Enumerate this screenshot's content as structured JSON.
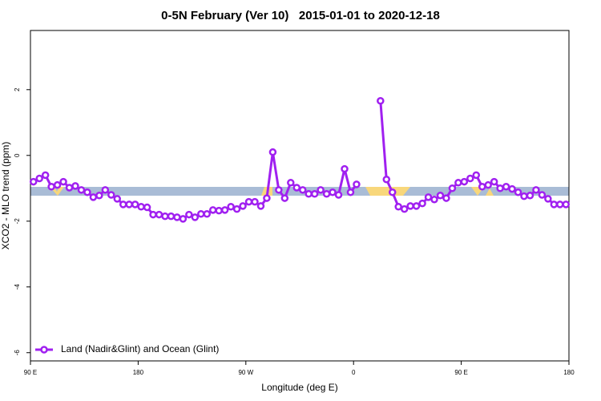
{
  "chart_data": {
    "type": "line",
    "title": "0-5N February (Ver 10)   2015-01-01 to 2020-12-18",
    "x_label": "Longitude (deg E)",
    "y_label": "XCO2 - MLO trend (ppm)",
    "x": [
      92.5,
      97.5,
      102.5,
      107.5,
      112.5,
      117.5,
      122.5,
      127.5,
      132.5,
      137.5,
      142.5,
      147.5,
      152.5,
      157.5,
      162.5,
      167.5,
      172.5,
      177.5,
      182.5,
      187.5,
      192.5,
      197.5,
      202.5,
      207.5,
      212.5,
      217.5,
      222.5,
      227.5,
      232.5,
      237.5,
      242.5,
      247.5,
      252.5,
      257.5,
      262.5,
      267.5,
      272.5,
      277.5,
      282.5,
      287.5,
      292.5,
      297.5,
      302.5,
      307.5,
      312.5,
      317.5,
      322.5,
      327.5,
      332.5,
      337.5,
      342.5,
      347.5,
      352.5,
      357.5,
      362.5,
      367.5,
      372.5,
      377.5,
      382.5,
      387.5,
      392.5,
      397.5,
      402.5,
      407.5,
      412.5,
      417.5,
      422.5,
      427.5,
      432.5,
      437.5,
      442.5,
      447.5,
      452.5,
      457.5,
      462.5,
      467.5,
      472.5,
      477.5,
      482.5,
      487.5,
      492.5,
      497.5,
      502.5,
      507.5,
      512.5,
      517.5,
      522.5,
      527.5,
      532.5,
      537.5
    ],
    "series": [
      {
        "name": "Land (Nadir&Glint) and Ocean (Glint)",
        "color": "#a020f0",
        "values": [
          -0.8,
          -0.7,
          -0.6,
          -0.95,
          -0.9,
          -0.8,
          -0.98,
          -0.93,
          -1.05,
          -1.12,
          -1.27,
          -1.22,
          -1.05,
          -1.2,
          -1.32,
          -1.49,
          -1.49,
          -1.49,
          -1.56,
          -1.58,
          -1.8,
          -1.8,
          -1.85,
          -1.85,
          -1.88,
          -1.93,
          -1.8,
          -1.88,
          -1.78,
          -1.78,
          -1.66,
          -1.68,
          -1.66,
          -1.56,
          -1.63,
          -1.54,
          -1.41,
          -1.41,
          -1.54,
          -1.3,
          0.1,
          -1.05,
          -1.3,
          -0.83,
          -0.98,
          -1.05,
          -1.17,
          -1.17,
          -1.05,
          -1.17,
          -1.12,
          -1.2,
          -0.41,
          -1.12,
          -0.88,
          null,
          null,
          null,
          1.66,
          -0.73,
          -1.12,
          -1.56,
          -1.63,
          -1.54,
          -1.54,
          -1.46,
          -1.27,
          -1.34,
          -1.22,
          -1.3,
          -1.0,
          -0.83,
          -0.8,
          -0.7,
          -0.6,
          -0.95,
          -0.9,
          -0.8,
          -1.0,
          -0.95,
          -1.02,
          -1.12,
          -1.24,
          -1.22,
          -1.05,
          -1.2,
          -1.32,
          -1.49,
          -1.49,
          -1.49
        ]
      }
    ],
    "xlim": [
      90,
      540
    ],
    "xticks": [
      {
        "value": 90,
        "label": "90 E"
      },
      180,
      {
        "value": 270,
        "label": "90 W"
      },
      {
        "value": 360,
        "label": "0"
      },
      {
        "value": 450,
        "label": "90 E"
      },
      {
        "value": 540,
        "label": "180"
      }
    ],
    "ylim": [
      -6.25,
      3.8
    ],
    "yticks": [
      -6,
      -4,
      -2,
      0,
      2
    ],
    "legend": "bottom-left"
  }
}
